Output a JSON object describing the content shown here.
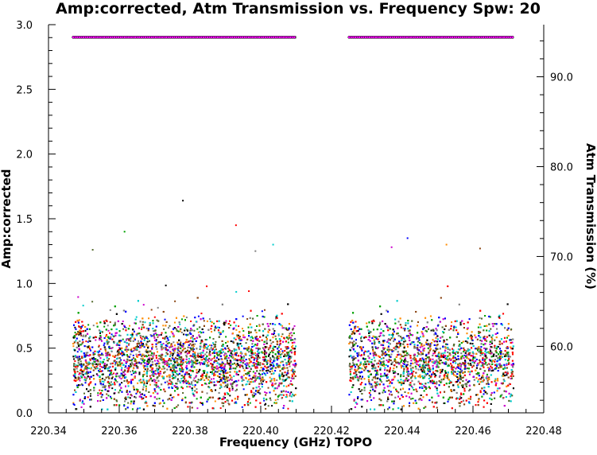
{
  "chart_data": {
    "type": "scatter",
    "title": "Amp:corrected, Atm Transmission vs. Frequency Spw: 20",
    "xlabel": "Frequency (GHz) TOPO",
    "ylabel": "Amp:corrected",
    "y2label": "Atm Transmission (%)",
    "xlim": [
      220.34,
      220.48
    ],
    "ylim": [
      0.0,
      3.0
    ],
    "y2lim": [
      52.6,
      95.8
    ],
    "x_ticks": [
      "220.34",
      "220.36",
      "220.38",
      "220.40",
      "220.42",
      "220.44",
      "220.46",
      "220.48"
    ],
    "y_ticks": [
      "0.0",
      "0.5",
      "1.0",
      "1.5",
      "2.0",
      "2.5",
      "3.0"
    ],
    "y2_ticks": [
      "60.0",
      "70.0",
      "80.0",
      "90.0"
    ],
    "grid": false,
    "colors": [
      "#000000",
      "#ff0000",
      "#00a000",
      "#0000ff",
      "#ff8c00",
      "#00cccc",
      "#cc00cc",
      "#8b4513",
      "#556b2f",
      "#808080"
    ],
    "series": [
      {
        "segments": [
          {
            "x_start": 220.347,
            "x_end": 220.41
          },
          {
            "x_start": 220.425,
            "x_end": 220.4715
          }
        ],
        "typical_range": [
          0.05,
          0.75
        ],
        "outliers": [
          {
            "x": 220.378,
            "y": 1.64
          },
          {
            "x": 220.393,
            "y": 1.45
          },
          {
            "x": 220.3615,
            "y": 1.4
          },
          {
            "x": 220.4415,
            "y": 1.35
          },
          {
            "x": 220.4525,
            "y": 1.3
          },
          {
            "x": 220.4035,
            "y": 1.3
          },
          {
            "x": 220.437,
            "y": 1.28
          },
          {
            "x": 220.462,
            "y": 1.27
          },
          {
            "x": 220.3525,
            "y": 1.26
          },
          {
            "x": 220.3985,
            "y": 1.25
          }
        ]
      },
      {
        "name": "Atm Transmission",
        "axis": "y2",
        "segments": [
          {
            "x_start": 220.347,
            "x_end": 220.41,
            "value": 94.4
          },
          {
            "x_start": 220.425,
            "x_end": 220.4715,
            "value": 94.4
          }
        ]
      }
    ]
  }
}
